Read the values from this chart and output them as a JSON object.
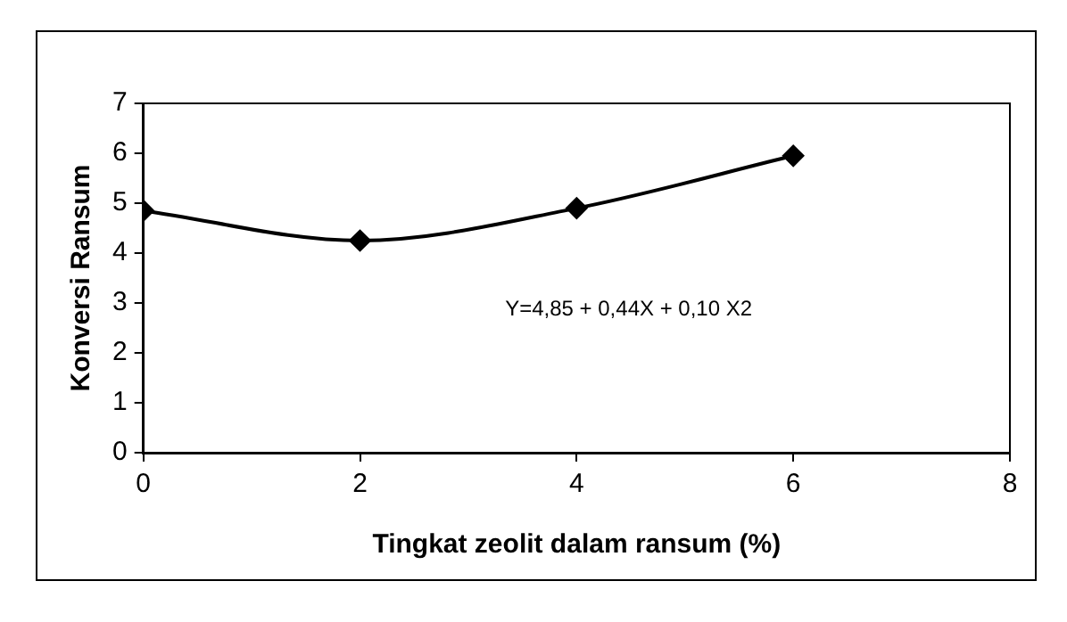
{
  "chart_data": {
    "type": "line",
    "xlabel": "Tingkat zeolit dalam ransum (%)",
    "ylabel": "Konversi Ransum",
    "x": [
      0,
      2,
      4,
      6
    ],
    "series": [
      {
        "color": "#000000",
        "values": [
          4.85,
          4.25,
          4.9,
          5.95
        ]
      }
    ],
    "xlim": [
      0,
      8
    ],
    "xticks": [
      0,
      2,
      4,
      6,
      8
    ],
    "ylim": [
      0,
      7
    ],
    "yticks": [
      0,
      1,
      2,
      3,
      4,
      5,
      6,
      7
    ],
    "annotations": [
      "Y=4,85 + 0,44X + 0,10 X2"
    ],
    "marker": "diamond",
    "line_style": "solid",
    "grid": false,
    "legend": false
  }
}
